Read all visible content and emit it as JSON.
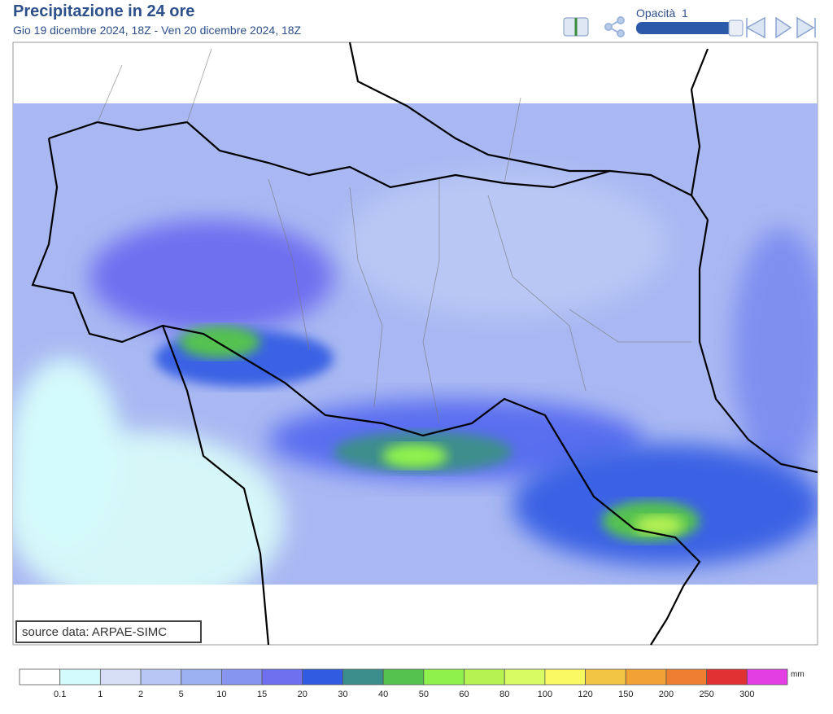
{
  "header": {
    "title": "Precipitazione in 24 ore",
    "subtitle": "Gio 19 dicembre 2024, 18Z - Ven 20 dicembre 2024, 18Z",
    "opacity_label": "Opacità",
    "opacity_value": "1"
  },
  "map": {
    "source": "source data: ARPAE-SIMC"
  },
  "legend": {
    "unit": "mm",
    "thresholds": [
      0.1,
      1,
      2,
      5,
      10,
      15,
      20,
      30,
      40,
      50,
      60,
      80,
      100,
      120,
      150,
      200,
      250,
      300
    ],
    "colors": [
      "#ffffff",
      "#d4fbfb",
      "#d6def6",
      "#b7c6f4",
      "#9bb0f0",
      "#8595f0",
      "#6e70f0",
      "#2f5ce0",
      "#3c8e8c",
      "#55c250",
      "#8ff24c",
      "#b6f252",
      "#d8fa62",
      "#f8f862",
      "#f2c542",
      "#f2a234",
      "#ee7e30",
      "#e03232",
      "#e23ee4"
    ]
  }
}
